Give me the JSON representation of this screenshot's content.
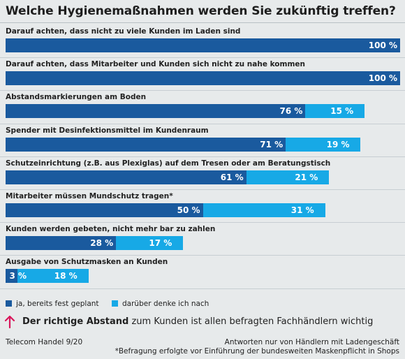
{
  "chart_data": {
    "type": "bar",
    "orientation": "horizontal",
    "stacked": true,
    "title": "Welche Hygienemaßnahmen werden Sie zukünftig treffen?",
    "xlim": [
      0,
      100
    ],
    "series": [
      {
        "name": "ja, bereits fest geplant",
        "color": "#1a5a9e",
        "values": [
          100,
          100,
          76,
          71,
          61,
          50,
          28,
          3
        ]
      },
      {
        "name": "darüber denke ich nach",
        "color": "#17a9e6",
        "values": [
          null,
          null,
          15,
          19,
          21,
          31,
          17,
          18
        ]
      }
    ],
    "categories": [
      "Darauf achten, dass nicht zu viele Kunden im Laden sind",
      "Darauf achten, dass Mitarbeiter und Kunden sich nicht zu nahe kommen",
      "Abstandsmarkierungen am Boden",
      "Spender mit Desinfektionsmittel im Kundenraum",
      "Schutzeinrichtung (z.B. aus Plexiglas) auf dem Tresen oder am Beratungstisch",
      "Mitarbeiter müssen Mundschutz tragen*",
      "Kunden werden gebeten, nicht mehr bar zu zahlen",
      "Ausgabe von Schutzmasken an Kunden"
    ],
    "value_labels": {
      "dark": [
        "100 %",
        "100 %",
        "76 %",
        "71 %",
        "61 %",
        "50 %",
        "28 %",
        "3 %"
      ],
      "light": [
        "",
        "",
        "15 %",
        "19 %",
        "21 %",
        "31 %",
        "17 %",
        "18 %"
      ]
    },
    "legend": {
      "position": "bottom-left",
      "entries": [
        "ja, bereits fest geplant",
        "darüber denke ich nach"
      ]
    }
  },
  "note": {
    "bold": "Der richtige Abstand",
    "rest": " zum Kunden ist allen befragten Fachhändlern wichtig",
    "icon": "arrow-up-icon",
    "icon_color": "#d8175b"
  },
  "footer": {
    "source": "Telecom Handel 9/20",
    "note1": "Antworten nur von Händlern mit Ladengeschäft",
    "note2": "*Befragung erfolgte vor Einführung der bundesweiten Maskenpflicht in Shops"
  }
}
